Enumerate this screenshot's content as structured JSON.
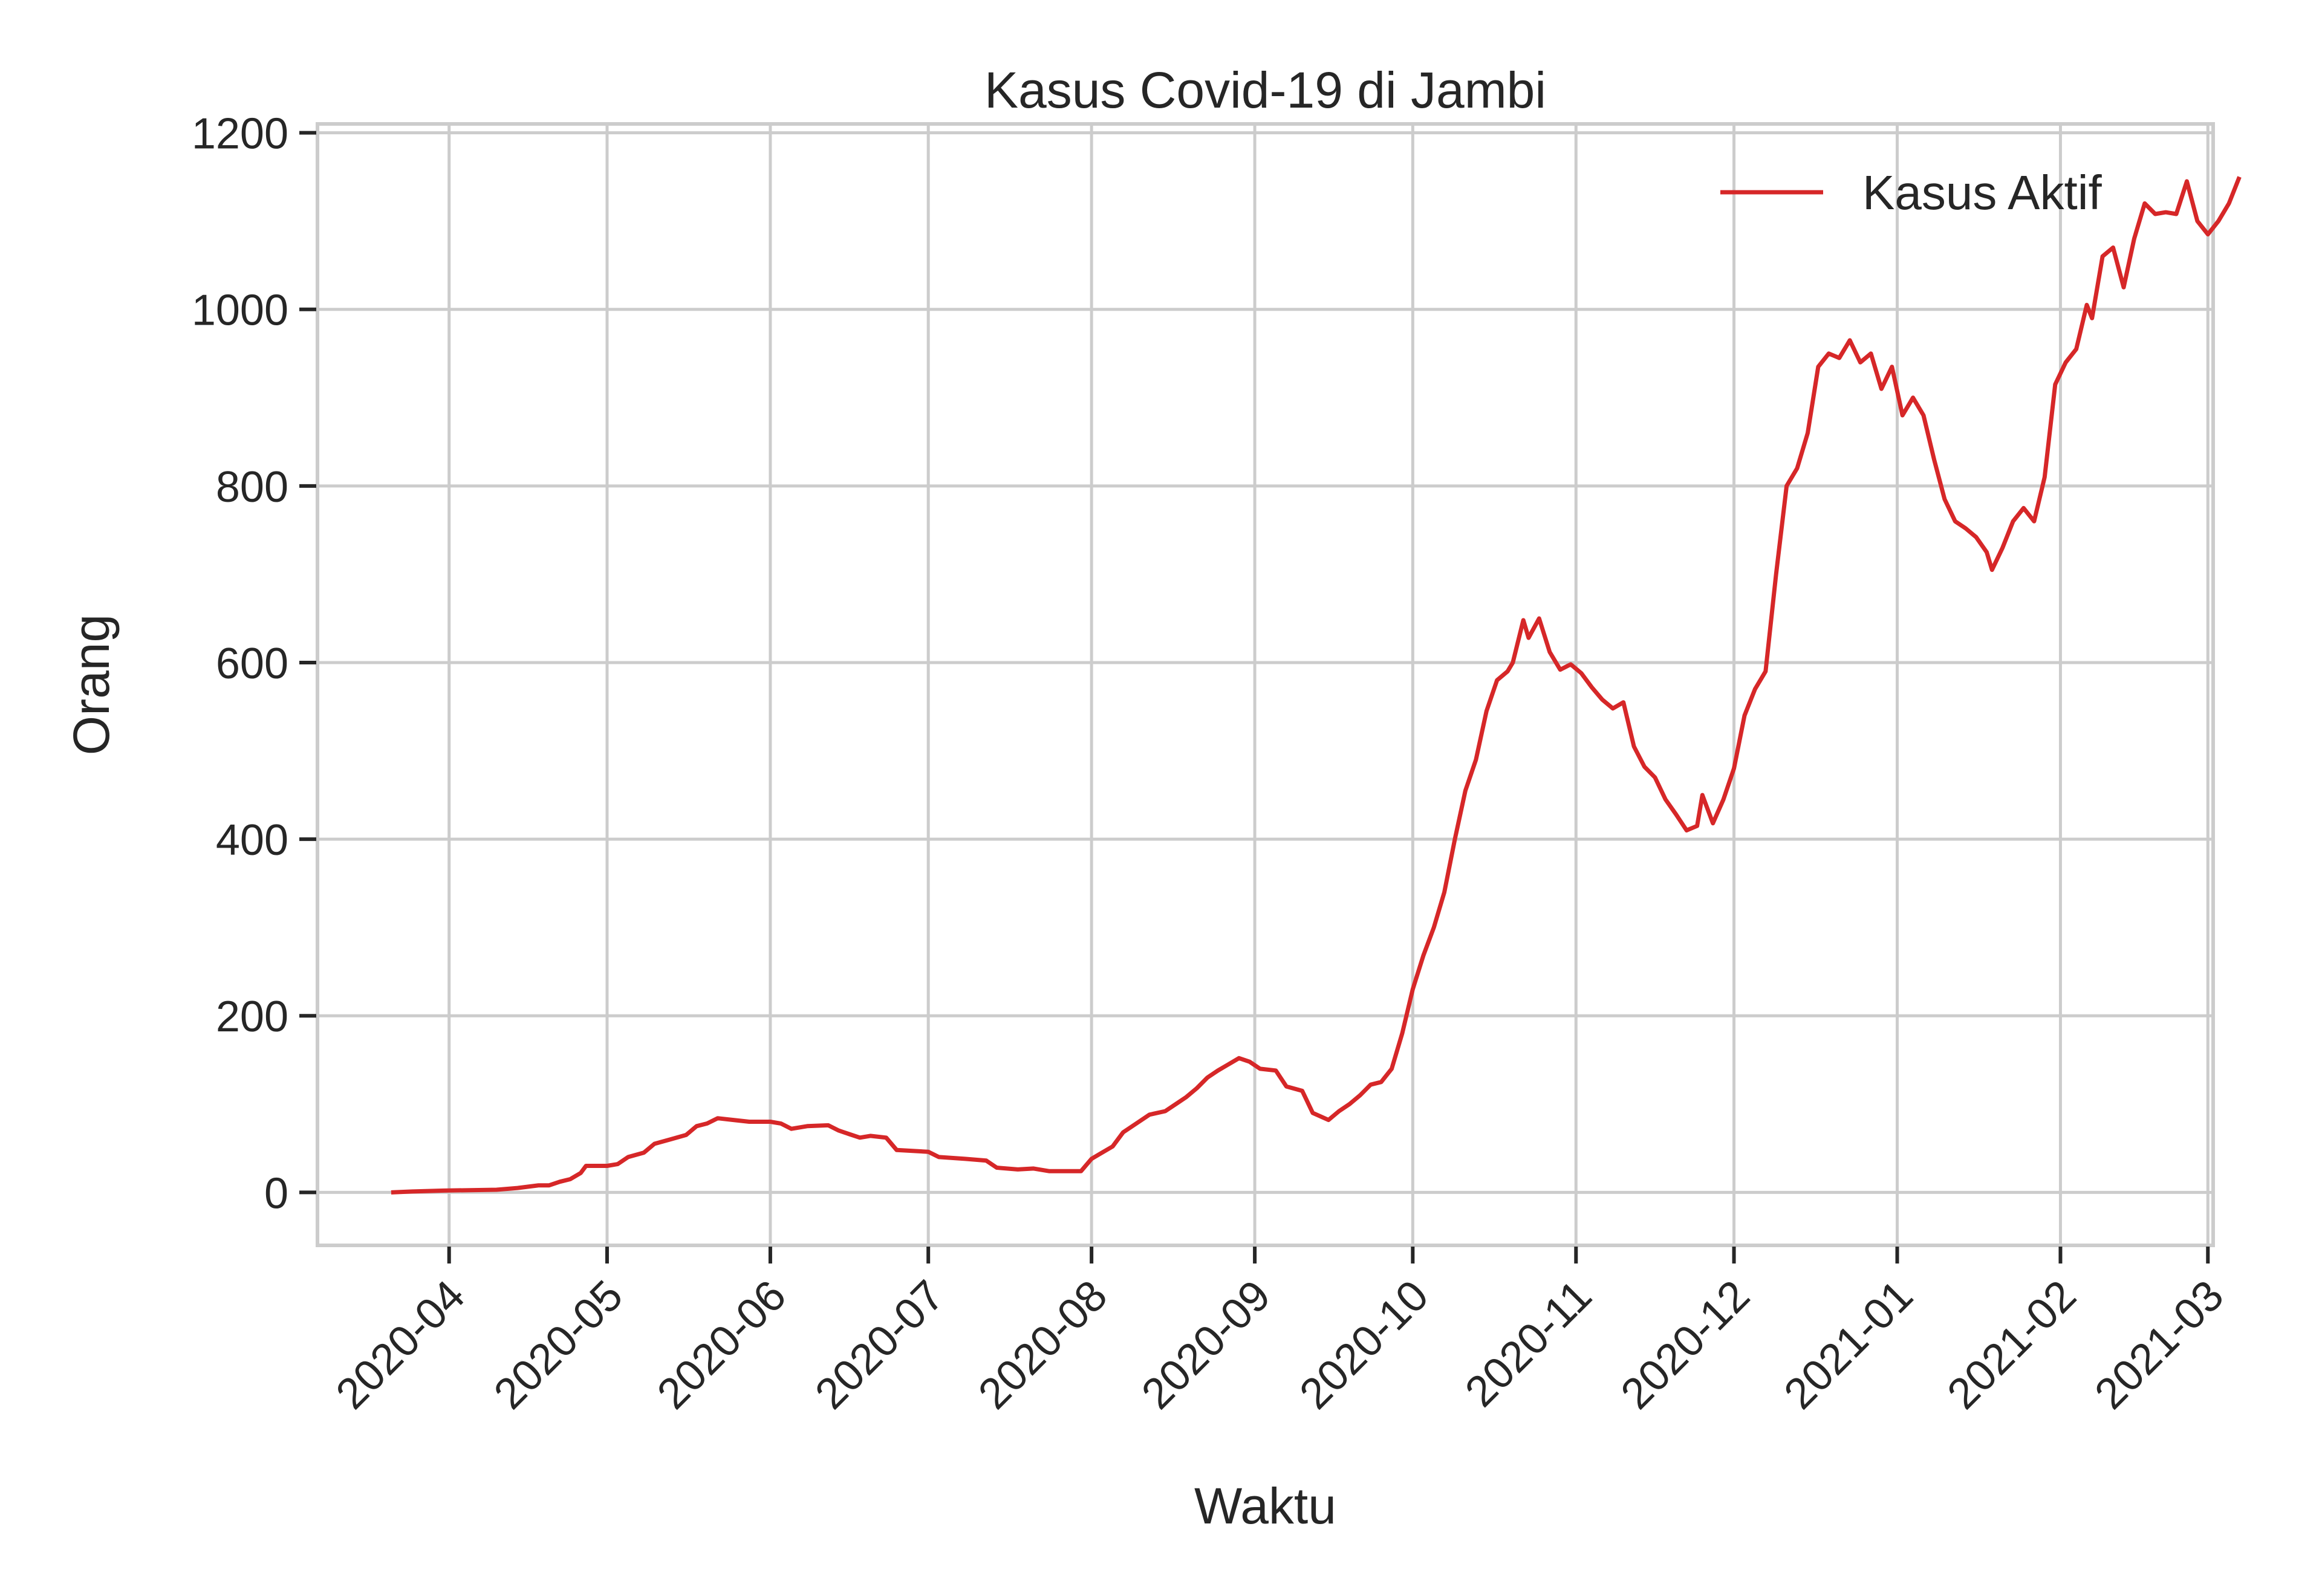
{
  "chart_data": {
    "type": "line",
    "title": "Kasus Covid-19 di Jambi",
    "xlabel": "Waktu",
    "ylabel": "Orang",
    "ylim": [
      -60,
      1210
    ],
    "xlim": [
      "2020-03-07",
      "2021-03-02"
    ],
    "grid": true,
    "legend_position": "top-right",
    "x_ticks": [
      "2020-04",
      "2020-05",
      "2020-06",
      "2020-07",
      "2020-08",
      "2020-09",
      "2020-10",
      "2020-11",
      "2020-12",
      "2021-01",
      "2021-02",
      "2021-03"
    ],
    "y_ticks": [
      0,
      200,
      400,
      600,
      800,
      1000,
      1200
    ],
    "series": [
      {
        "name": "Kasus Aktif",
        "color": "#d62728",
        "points": [
          [
            "2020-03-21",
            0
          ],
          [
            "2020-03-25",
            1
          ],
          [
            "2020-03-31",
            2
          ],
          [
            "2020-04-10",
            3
          ],
          [
            "2020-04-14",
            5
          ],
          [
            "2020-04-18",
            8
          ],
          [
            "2020-04-20",
            8
          ],
          [
            "2020-04-22",
            12
          ],
          [
            "2020-04-24",
            15
          ],
          [
            "2020-04-26",
            22
          ],
          [
            "2020-04-27",
            30
          ],
          [
            "2020-05-01",
            30
          ],
          [
            "2020-05-03",
            32
          ],
          [
            "2020-05-05",
            40
          ],
          [
            "2020-05-08",
            45
          ],
          [
            "2020-05-10",
            55
          ],
          [
            "2020-05-13",
            60
          ],
          [
            "2020-05-16",
            65
          ],
          [
            "2020-05-18",
            75
          ],
          [
            "2020-05-20",
            78
          ],
          [
            "2020-05-22",
            84
          ],
          [
            "2020-05-25",
            82
          ],
          [
            "2020-05-28",
            80
          ],
          [
            "2020-06-01",
            80
          ],
          [
            "2020-06-03",
            78
          ],
          [
            "2020-06-05",
            72
          ],
          [
            "2020-06-08",
            75
          ],
          [
            "2020-06-12",
            76
          ],
          [
            "2020-06-14",
            70
          ],
          [
            "2020-06-16",
            66
          ],
          [
            "2020-06-18",
            62
          ],
          [
            "2020-06-20",
            64
          ],
          [
            "2020-06-23",
            62
          ],
          [
            "2020-06-25",
            48
          ],
          [
            "2020-07-01",
            46
          ],
          [
            "2020-07-03",
            40
          ],
          [
            "2020-07-08",
            38
          ],
          [
            "2020-07-12",
            36
          ],
          [
            "2020-07-14",
            28
          ],
          [
            "2020-07-18",
            26
          ],
          [
            "2020-07-21",
            27
          ],
          [
            "2020-07-24",
            24
          ],
          [
            "2020-07-30",
            24
          ],
          [
            "2020-08-01",
            38
          ],
          [
            "2020-08-03",
            45
          ],
          [
            "2020-08-05",
            52
          ],
          [
            "2020-08-07",
            68
          ],
          [
            "2020-08-10",
            80
          ],
          [
            "2020-08-12",
            88
          ],
          [
            "2020-08-15",
            92
          ],
          [
            "2020-08-17",
            100
          ],
          [
            "2020-08-19",
            108
          ],
          [
            "2020-08-21",
            118
          ],
          [
            "2020-08-23",
            130
          ],
          [
            "2020-08-25",
            138
          ],
          [
            "2020-08-27",
            145
          ],
          [
            "2020-08-29",
            152
          ],
          [
            "2020-08-31",
            148
          ],
          [
            "2020-09-02",
            140
          ],
          [
            "2020-09-05",
            138
          ],
          [
            "2020-09-07",
            120
          ],
          [
            "2020-09-10",
            115
          ],
          [
            "2020-09-12",
            90
          ],
          [
            "2020-09-15",
            82
          ],
          [
            "2020-09-17",
            92
          ],
          [
            "2020-09-19",
            100
          ],
          [
            "2020-09-21",
            110
          ],
          [
            "2020-09-23",
            122
          ],
          [
            "2020-09-25",
            125
          ],
          [
            "2020-09-27",
            140
          ],
          [
            "2020-09-29",
            180
          ],
          [
            "2020-10-01",
            230
          ],
          [
            "2020-10-03",
            268
          ],
          [
            "2020-10-05",
            300
          ],
          [
            "2020-10-07",
            340
          ],
          [
            "2020-10-09",
            400
          ],
          [
            "2020-10-11",
            455
          ],
          [
            "2020-10-13",
            490
          ],
          [
            "2020-10-15",
            545
          ],
          [
            "2020-10-17",
            580
          ],
          [
            "2020-10-19",
            590
          ],
          [
            "2020-10-20",
            600
          ],
          [
            "2020-10-22",
            648
          ],
          [
            "2020-10-23",
            628
          ],
          [
            "2020-10-25",
            650
          ],
          [
            "2020-10-27",
            612
          ],
          [
            "2020-10-29",
            592
          ],
          [
            "2020-10-31",
            598
          ],
          [
            "2020-11-02",
            588
          ],
          [
            "2020-11-04",
            572
          ],
          [
            "2020-11-06",
            558
          ],
          [
            "2020-11-08",
            548
          ],
          [
            "2020-11-10",
            555
          ],
          [
            "2020-11-12",
            505
          ],
          [
            "2020-11-14",
            482
          ],
          [
            "2020-11-16",
            470
          ],
          [
            "2020-11-18",
            445
          ],
          [
            "2020-11-20",
            428
          ],
          [
            "2020-11-22",
            410
          ],
          [
            "2020-11-24",
            415
          ],
          [
            "2020-11-25",
            450
          ],
          [
            "2020-11-27",
            418
          ],
          [
            "2020-11-29",
            445
          ],
          [
            "2020-12-01",
            480
          ],
          [
            "2020-12-03",
            540
          ],
          [
            "2020-12-05",
            570
          ],
          [
            "2020-12-07",
            590
          ],
          [
            "2020-12-09",
            700
          ],
          [
            "2020-12-11",
            800
          ],
          [
            "2020-12-13",
            820
          ],
          [
            "2020-12-15",
            860
          ],
          [
            "2020-12-17",
            935
          ],
          [
            "2020-12-19",
            950
          ],
          [
            "2020-12-21",
            945
          ],
          [
            "2020-12-23",
            965
          ],
          [
            "2020-12-25",
            940
          ],
          [
            "2020-12-27",
            950
          ],
          [
            "2020-12-29",
            910
          ],
          [
            "2020-12-31",
            935
          ],
          [
            "2021-01-02",
            880
          ],
          [
            "2021-01-04",
            900
          ],
          [
            "2021-01-06",
            880
          ],
          [
            "2021-01-08",
            830
          ],
          [
            "2021-01-10",
            785
          ],
          [
            "2021-01-12",
            760
          ],
          [
            "2021-01-14",
            752
          ],
          [
            "2021-01-16",
            742
          ],
          [
            "2021-01-18",
            725
          ],
          [
            "2021-01-19",
            705
          ],
          [
            "2021-01-21",
            730
          ],
          [
            "2021-01-23",
            760
          ],
          [
            "2021-01-25",
            775
          ],
          [
            "2021-01-27",
            760
          ],
          [
            "2021-01-29",
            810
          ],
          [
            "2021-01-31",
            915
          ],
          [
            "2021-02-02",
            940
          ],
          [
            "2021-02-04",
            955
          ],
          [
            "2021-02-06",
            1005
          ],
          [
            "2021-02-07",
            990
          ],
          [
            "2021-02-09",
            1060
          ],
          [
            "2021-02-11",
            1070
          ],
          [
            "2021-02-13",
            1025
          ],
          [
            "2021-02-15",
            1080
          ],
          [
            "2021-02-17",
            1120
          ],
          [
            "2021-02-19",
            1108
          ],
          [
            "2021-02-21",
            1110
          ],
          [
            "2021-02-23",
            1108
          ],
          [
            "2021-02-25",
            1145
          ],
          [
            "2021-02-27",
            1100
          ],
          [
            "2021-03-01",
            1085
          ],
          [
            "2021-03-03",
            1100
          ],
          [
            "2021-03-05",
            1120
          ],
          [
            "2021-03-07",
            1150
          ]
        ]
      }
    ]
  }
}
